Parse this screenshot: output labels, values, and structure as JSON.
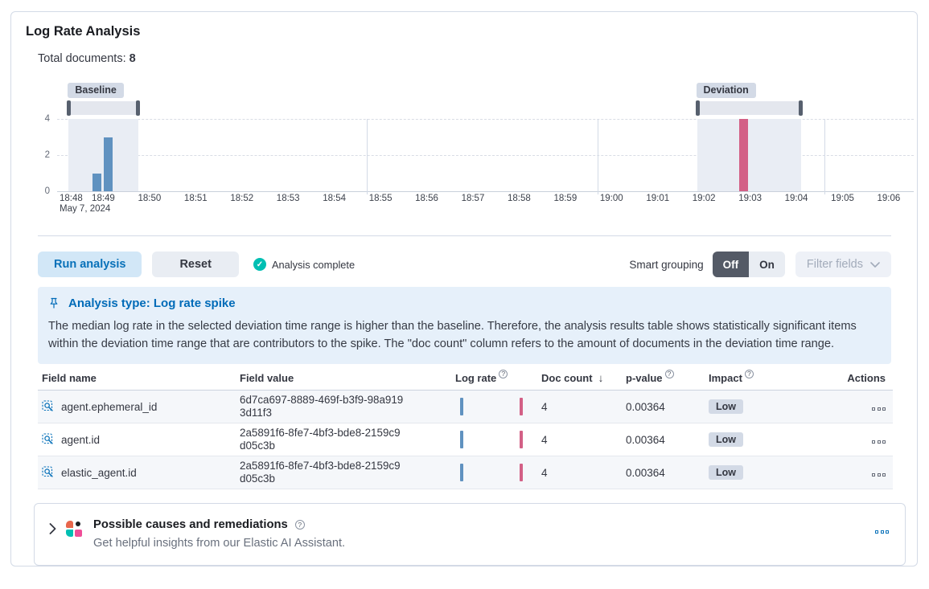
{
  "page": {
    "title": "Log Rate Analysis"
  },
  "summary": {
    "total_documents_label": "Total documents:",
    "total_documents_value": "8"
  },
  "chart_data": {
    "type": "bar",
    "x_axis_date_label": "May 7, 2024",
    "x_ticks": [
      "18:48",
      "18:49",
      "18:50",
      "18:51",
      "18:52",
      "18:53",
      "18:54",
      "18:55",
      "18:56",
      "18:57",
      "18:58",
      "18:59",
      "19:00",
      "19:01",
      "19:02",
      "19:03",
      "19:04",
      "19:05",
      "19:06"
    ],
    "y_ticks": [
      {
        "value": 4,
        "label": "4"
      },
      {
        "value": 2,
        "label": "2"
      },
      {
        "value": 0,
        "label": "0"
      }
    ],
    "ylim": [
      0,
      4
    ],
    "grid": true,
    "v_gridlines_min": [
      6.7,
      11.7,
      16.6
    ],
    "series": [
      {
        "name": "baseline document count",
        "color": "#6092C0",
        "points": [
          {
            "offset_min": 0.75,
            "value": 1
          },
          {
            "offset_min": 1.0,
            "value": 3
          }
        ]
      },
      {
        "name": "deviation document count",
        "color": "#D36086",
        "points": [
          {
            "offset_min": 14.75,
            "value": 4
          }
        ]
      }
    ],
    "brushes": [
      {
        "label": "Baseline",
        "from_min": 0.25,
        "to_min": 1.75
      },
      {
        "label": "Deviation",
        "from_min": 13.85,
        "to_min": 16.1
      }
    ]
  },
  "controls": {
    "run_button": "Run analysis",
    "reset_button": "Reset",
    "status_text": "Analysis complete",
    "smart_grouping_label": "Smart grouping",
    "smart_grouping_off": "Off",
    "smart_grouping_on": "On",
    "smart_grouping_selected": "Off",
    "filter_fields_button": "Filter fields"
  },
  "callout": {
    "title": "Analysis type: Log rate spike",
    "body": "The median log rate in the selected deviation time range is higher than the baseline. Therefore, the analysis results table shows statistically significant items within the deviation time range that are contributors to the spike. The \"doc count\" column refers to the amount of documents in the deviation time range."
  },
  "table": {
    "columns": [
      {
        "label": "Field name"
      },
      {
        "label": "Field value"
      },
      {
        "label": "Log rate",
        "info": true
      },
      {
        "label": "Doc count",
        "sort": "desc",
        "sort_icon": "↓"
      },
      {
        "label": "p-value",
        "info": true
      },
      {
        "label": "Impact",
        "info": true
      },
      {
        "label": "Actions",
        "align": "right"
      }
    ],
    "rows": [
      {
        "field_name": "agent.ephemeral_id",
        "field_value": "6d7ca697-8889-469f-b3f9-98a9193d11f3",
        "doc_count": "4",
        "p_value": "0.00364",
        "impact": "Low"
      },
      {
        "field_name": "agent.id",
        "field_value": "2a5891f6-8fe7-4bf3-bde8-2159c9d05c3b",
        "doc_count": "4",
        "p_value": "0.00364",
        "impact": "Low"
      },
      {
        "field_name": "elastic_agent.id",
        "field_value": "2a5891f6-8fe7-4bf3-bde8-2159c9d05c3b",
        "doc_count": "4",
        "p_value": "0.00364",
        "impact": "Low"
      }
    ]
  },
  "insights_panel": {
    "title": "Possible causes and remediations",
    "subtitle": "Get helpful insights from our Elastic AI Assistant."
  },
  "colors": {
    "baseline_bar": "#6092C0",
    "deviation_bar": "#D36086",
    "primary_blue": "#0871B9",
    "success_green": "#00BFB3",
    "badge_bg": "#D3DAE6",
    "callout_bg": "#E6F0FA"
  },
  "icons": {
    "check": "✓",
    "sort_desc": "↓",
    "question": "?"
  }
}
